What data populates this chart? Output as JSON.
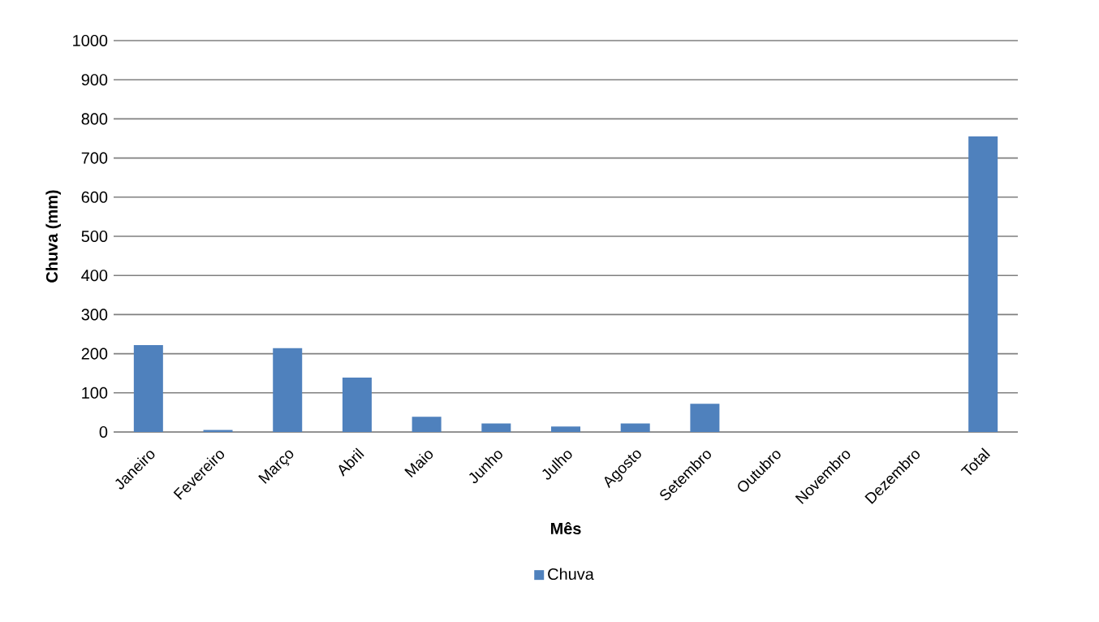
{
  "chart_data": {
    "type": "bar",
    "xlabel": "Mês",
    "ylabel": "Chuva (mm)",
    "categories": [
      "Janeiro",
      "Fevereiro",
      "Março",
      "Abril",
      "Maio",
      "Junho",
      "Julho",
      "Agosto",
      "Setembro",
      "Outubro",
      "Novembro",
      "Dezembro",
      "Total"
    ],
    "series": [
      {
        "name": "Chuva",
        "color": "#4f81bd",
        "values": [
          222,
          5,
          214,
          139,
          39,
          22,
          14,
          22,
          72,
          0,
          0,
          0,
          755
        ]
      }
    ],
    "ylim": [
      0,
      1000
    ],
    "yticks": [
      0,
      100,
      200,
      300,
      400,
      500,
      600,
      700,
      800,
      900,
      1000
    ],
    "grid": "y",
    "legend": "bottom"
  }
}
